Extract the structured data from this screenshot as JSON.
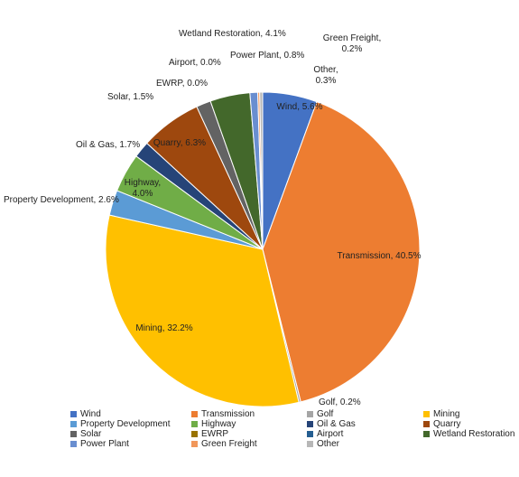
{
  "chart_data": {
    "type": "pie",
    "title": "",
    "categories": [
      "Wind",
      "Transmission",
      "Golf",
      "Mining",
      "Property Development",
      "Highway",
      "Oil & Gas",
      "Quarry",
      "Solar",
      "EWRP",
      "Airport",
      "Wetland Restoration",
      "Power Plant",
      "Green Freight",
      "Other"
    ],
    "values": [
      5.6,
      40.5,
      0.2,
      32.2,
      2.6,
      4.0,
      1.7,
      6.3,
      1.5,
      0.0,
      0.0,
      4.1,
      0.8,
      0.2,
      0.3
    ],
    "colors": [
      "#4472C4",
      "#ED7D31",
      "#A5A5A5",
      "#FFC000",
      "#5B9BD5",
      "#70AD47",
      "#264478",
      "#9E480E",
      "#636363",
      "#997300",
      "#255E91",
      "#43682B",
      "#698ED0",
      "#F1975A",
      "#B7B7B7"
    ],
    "data_labels": [
      "Wind, 5.6%",
      "Transmission, 40.5%",
      "Golf, 0.2%",
      "Mining, 32.2%",
      "Property Development, 2.6%",
      "Highway, 4.0%",
      "Oil & Gas, 1.7%",
      "Quarry, 6.3%",
      "Solar, 1.5%",
      "EWRP, 0.0%",
      "Airport, 0.0%",
      "Wetland Restoration, 4.1%",
      "Power Plant, 0.8%",
      "Green Freight, 0.2%",
      "Other, 0.3%"
    ],
    "legend_position": "bottom"
  }
}
